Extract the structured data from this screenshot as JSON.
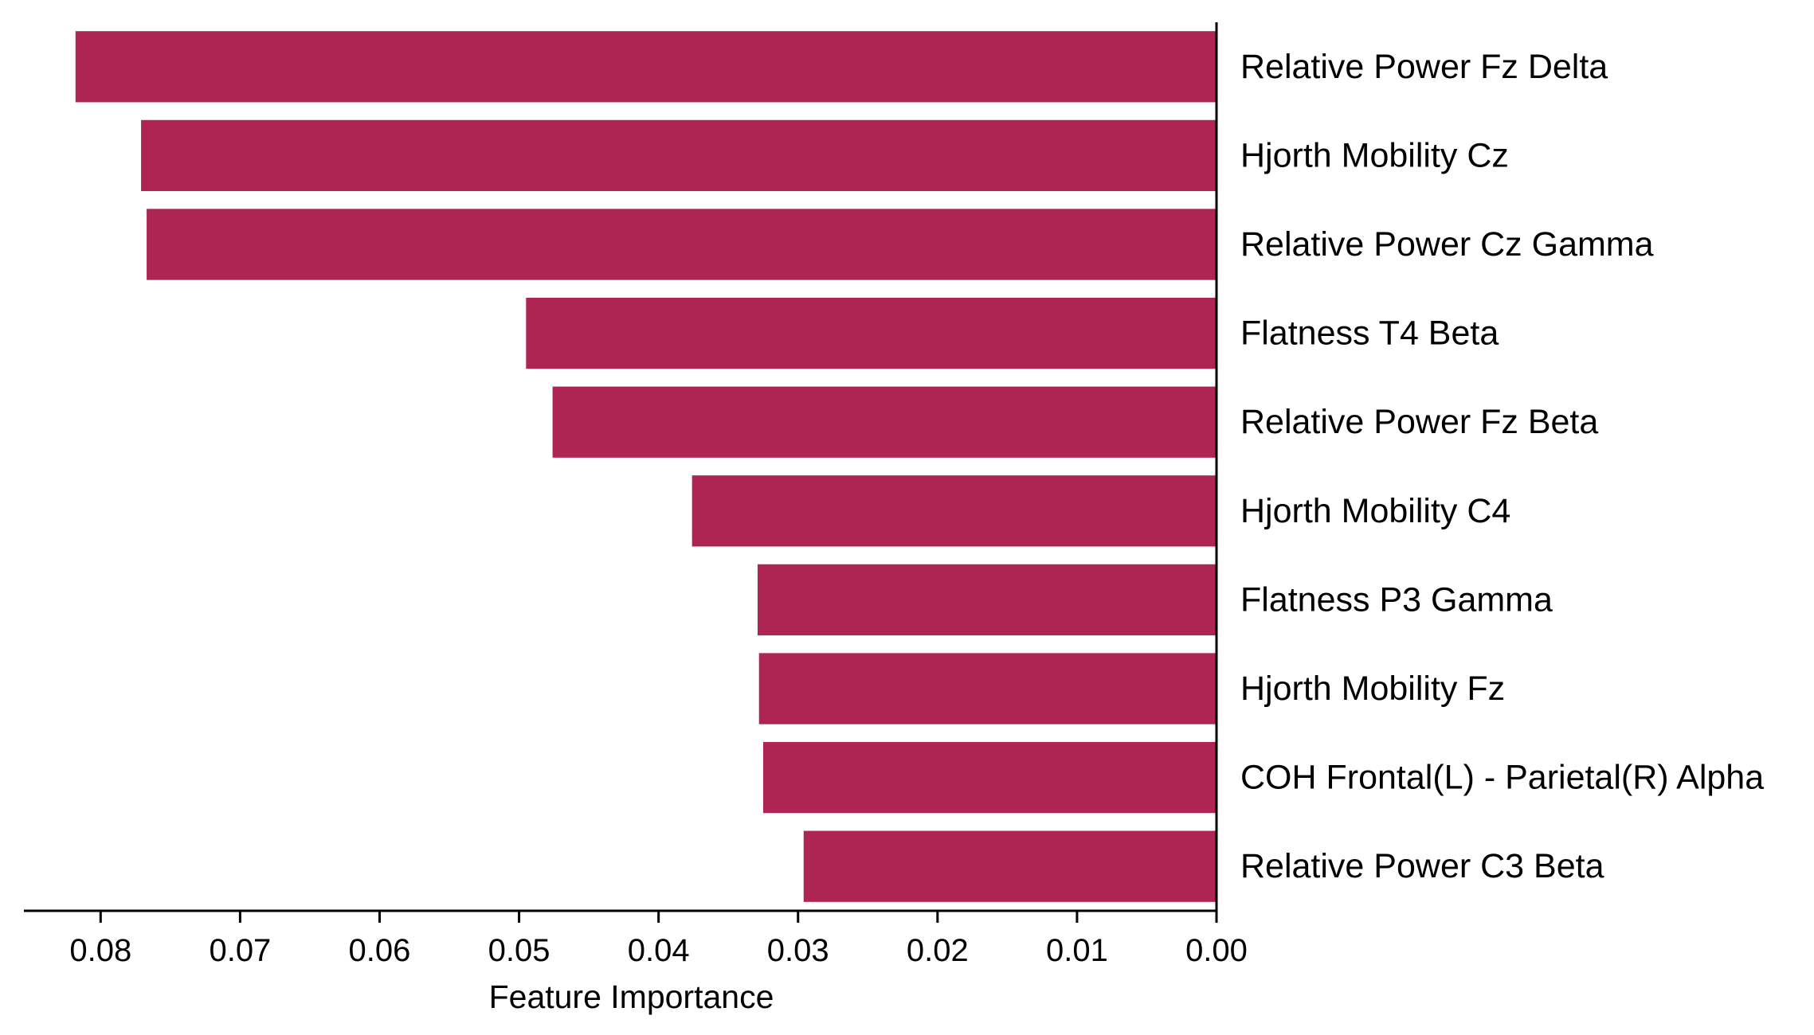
{
  "chart_data": {
    "type": "bar",
    "orientation": "horizontal",
    "x_axis_reversed": true,
    "category_axis_side": "right",
    "title": "",
    "xlabel": "Feature Importance",
    "ylabel": "",
    "xlim": [
      0.0855,
      0.0
    ],
    "x_ticks": [
      0.08,
      0.07,
      0.06,
      0.05,
      0.04,
      0.03,
      0.02,
      0.01,
      0.0
    ],
    "x_tick_labels": [
      "0.08",
      "0.07",
      "0.06",
      "0.05",
      "0.04",
      "0.03",
      "0.02",
      "0.01",
      "0.00"
    ],
    "bar_color": "#ae2452",
    "grid": false,
    "categories": [
      "Relative Power Fz Delta",
      "Hjorth Mobility Cz",
      "Relative Power Cz Gamma",
      "Flatness T4 Beta",
      "Relative Power Fz Beta",
      "Hjorth Mobility C4",
      "Flatness P3 Gamma",
      "Hjorth Mobility Fz",
      "COH Frontal(L) - Parietal(R) Alpha",
      "Relative Power C3 Beta"
    ],
    "values": [
      0.0818,
      0.0771,
      0.0767,
      0.0495,
      0.0476,
      0.0376,
      0.0329,
      0.0328,
      0.0325,
      0.0296
    ]
  }
}
